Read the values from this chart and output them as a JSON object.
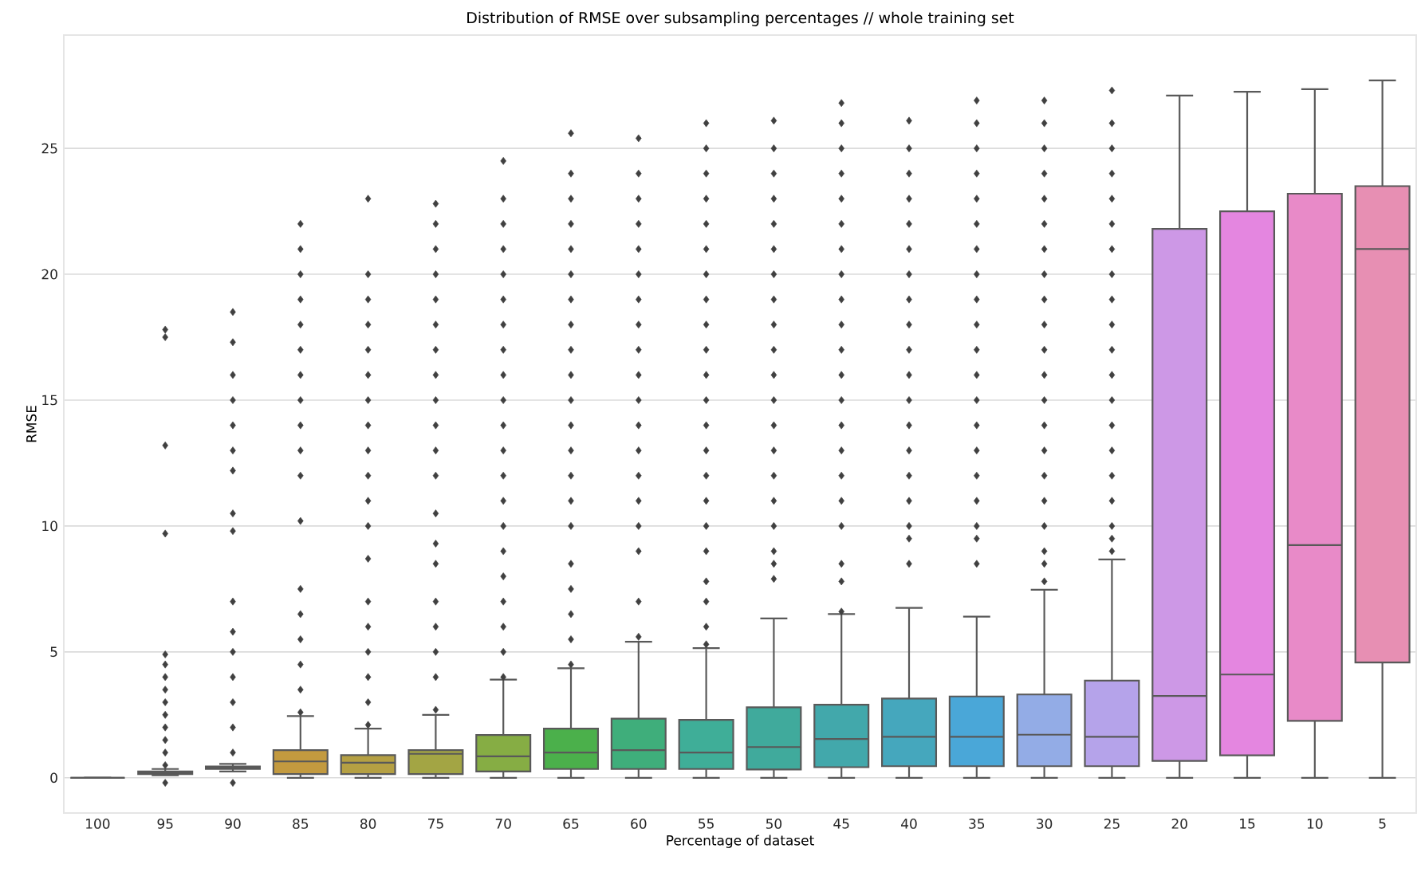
{
  "chart_data": {
    "type": "box",
    "title": "Distribution of RMSE over subsampling percentages // whole training set",
    "xlabel": "Percentage of dataset",
    "ylabel": "RMSE",
    "categories": [
      "100",
      "95",
      "90",
      "85",
      "80",
      "75",
      "70",
      "65",
      "60",
      "55",
      "50",
      "45",
      "40",
      "35",
      "30",
      "25",
      "20",
      "15",
      "10",
      "5"
    ],
    "colors": [
      "#595959",
      "#dc7a5c",
      "#cf8a45",
      "#c39a3f",
      "#b5a043",
      "#a3a544",
      "#86ad44",
      "#4bb04b",
      "#3fae7b",
      "#3fae98",
      "#40aa9c",
      "#42a8ab",
      "#45a7bd",
      "#4aa7d8",
      "#93ace6",
      "#b5a3ea",
      "#cd98e6",
      "#e486e0",
      "#e88ac8",
      "#e78fb3"
    ],
    "ylim": [
      -1.4,
      29.5
    ],
    "yticks": [
      0,
      5,
      10,
      15,
      20,
      25
    ],
    "grid": "y",
    "marker": "diamond",
    "boxes": [
      {
        "low": 0,
        "q1": 0,
        "median": 0,
        "q3": 0,
        "high": 0
      },
      {
        "low": 0.1,
        "q1": 0.15,
        "median": 0.2,
        "q3": 0.25,
        "high": 0.35,
        "outliers": [
          -0.2,
          0.5,
          1,
          1.5,
          2,
          2.5,
          3,
          3.5,
          4,
          4.5,
          4.9,
          9.7,
          13.2,
          17.5,
          17.8
        ]
      },
      {
        "low": 0.25,
        "q1": 0.35,
        "median": 0.4,
        "q3": 0.45,
        "high": 0.55,
        "outliers": [
          -0.2,
          1,
          2,
          3,
          4,
          5,
          5.8,
          7,
          9.8,
          10.5,
          12.2,
          13,
          14,
          15,
          16,
          17.3,
          18.5
        ]
      },
      {
        "low": 0,
        "q1": 0.15,
        "median": 0.65,
        "q3": 1.1,
        "high": 2.45,
        "outliers": [
          2.6,
          3.5,
          4.5,
          5.5,
          6.5,
          7.5,
          10.2,
          12,
          13,
          14,
          15,
          16,
          17,
          18,
          19,
          20,
          21,
          22
        ]
      },
      {
        "low": 0,
        "q1": 0.15,
        "median": 0.6,
        "q3": 0.9,
        "high": 1.95,
        "outliers": [
          2.1,
          3,
          4,
          5,
          6,
          7,
          8.7,
          10,
          11,
          12,
          13,
          14,
          15,
          16,
          17,
          18,
          19,
          20,
          23
        ]
      },
      {
        "low": 0,
        "q1": 0.15,
        "median": 0.95,
        "q3": 1.1,
        "high": 2.5,
        "outliers": [
          2.7,
          4,
          5,
          6,
          7,
          8.5,
          9.3,
          10.5,
          12,
          13,
          14,
          15,
          16,
          17,
          18,
          19,
          20,
          21,
          22,
          22.8
        ]
      },
      {
        "low": 0,
        "q1": 0.25,
        "median": 0.85,
        "q3": 1.7,
        "high": 3.9,
        "outliers": [
          4,
          5,
          6,
          7,
          8,
          9,
          10,
          11,
          12,
          13,
          14,
          15,
          16,
          17,
          18,
          19,
          20,
          21,
          22,
          23,
          24.5
        ]
      },
      {
        "low": 0,
        "q1": 0.35,
        "median": 1.0,
        "q3": 1.95,
        "high": 4.35,
        "outliers": [
          4.5,
          5.5,
          6.5,
          7.5,
          8.5,
          10,
          11,
          12,
          13,
          14,
          15,
          16,
          17,
          18,
          19,
          20,
          21,
          22,
          23,
          24,
          25.6
        ]
      },
      {
        "low": 0,
        "q1": 0.35,
        "median": 1.1,
        "q3": 2.35,
        "high": 5.4,
        "outliers": [
          5.6,
          7,
          9,
          10,
          11,
          12,
          13,
          14,
          15,
          16,
          17,
          18,
          19,
          20,
          21,
          22,
          23,
          24,
          25.4
        ]
      },
      {
        "low": 0,
        "q1": 0.35,
        "median": 1.0,
        "q3": 2.3,
        "high": 5.15,
        "outliers": [
          5.3,
          6,
          7,
          7.8,
          9,
          10,
          11,
          12,
          13,
          14,
          15,
          16,
          17,
          18,
          19,
          20,
          21,
          22,
          23,
          24,
          25,
          26
        ]
      },
      {
        "low": 0,
        "q1": 0.33,
        "median": 1.22,
        "q3": 2.8,
        "high": 6.33,
        "outliers": [
          7.9,
          8.5,
          9,
          10,
          11,
          12,
          13,
          14,
          15,
          16,
          17,
          18,
          19,
          20,
          21,
          22,
          23,
          24,
          25,
          26.1
        ]
      },
      {
        "low": 0,
        "q1": 0.42,
        "median": 1.54,
        "q3": 2.9,
        "high": 6.5,
        "outliers": [
          6.6,
          7.8,
          8.5,
          10,
          11,
          12,
          13,
          14,
          15,
          16,
          17,
          18,
          19,
          20,
          21,
          22,
          23,
          24,
          25,
          26,
          26.8
        ]
      },
      {
        "low": 0,
        "q1": 0.46,
        "median": 1.63,
        "q3": 3.15,
        "high": 6.75,
        "outliers": [
          8.5,
          9.5,
          10,
          11,
          12,
          13,
          14,
          15,
          16,
          17,
          18,
          19,
          20,
          21,
          22,
          23,
          24,
          25,
          26.1
        ]
      },
      {
        "low": 0,
        "q1": 0.46,
        "median": 1.63,
        "q3": 3.23,
        "high": 6.4,
        "outliers": [
          8.5,
          9.5,
          10,
          11,
          12,
          13,
          14,
          15,
          16,
          17,
          18,
          19,
          20,
          21,
          22,
          23,
          24,
          25,
          26,
          26.9
        ]
      },
      {
        "low": 0,
        "q1": 0.46,
        "median": 1.71,
        "q3": 3.31,
        "high": 7.47,
        "outliers": [
          7.8,
          8.5,
          9,
          10,
          11,
          12,
          13,
          14,
          15,
          16,
          17,
          18,
          19,
          20,
          21,
          22,
          23,
          24,
          25,
          26,
          26.9
        ]
      },
      {
        "low": 0,
        "q1": 0.46,
        "median": 1.63,
        "q3": 3.86,
        "high": 8.67,
        "outliers": [
          9,
          9.5,
          10,
          11,
          12,
          13,
          14,
          15,
          16,
          17,
          18,
          19,
          20,
          21,
          22,
          23,
          24,
          25,
          26,
          27.3
        ]
      },
      {
        "low": 0,
        "q1": 0.67,
        "median": 3.25,
        "q3": 21.8,
        "high": 27.1
      },
      {
        "low": 0,
        "q1": 0.89,
        "median": 4.1,
        "q3": 22.5,
        "high": 27.25
      },
      {
        "low": 0,
        "q1": 2.26,
        "median": 9.24,
        "q3": 23.2,
        "high": 27.35
      },
      {
        "low": 0,
        "q1": 4.58,
        "median": 21.0,
        "q3": 23.5,
        "high": 27.7
      }
    ]
  }
}
